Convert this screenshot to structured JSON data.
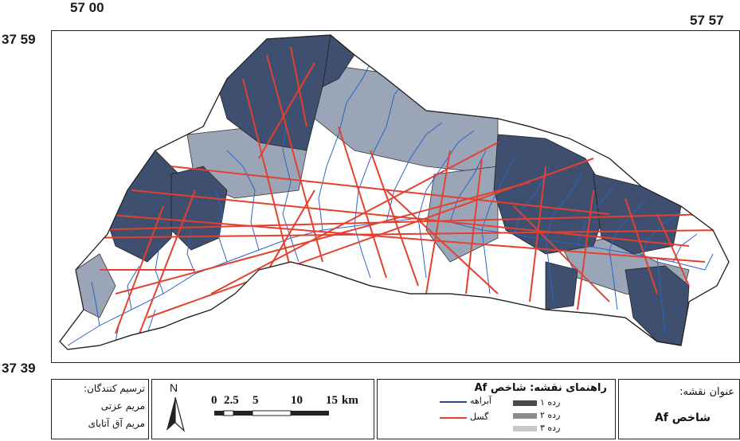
{
  "coords": {
    "top_left_lon": "57 00",
    "top_right_lon": "57 57",
    "top_lat": "37 59",
    "bottom_lat": "37 39"
  },
  "credits": {
    "title": "ترسیم کنندگان:",
    "name1": "مریم عزتی",
    "name2": "مریم آق آتابای"
  },
  "north": {
    "label": "N"
  },
  "scale": {
    "ticks": [
      "0",
      "2.5",
      "5",
      "10",
      "15"
    ],
    "unit": "km"
  },
  "legend": {
    "title": "راهنمای نقشه: شاخص Af",
    "items": [
      {
        "label": "آبراهه",
        "color": "#2f4a8c"
      },
      {
        "label": "گسل",
        "color": "#e4402f"
      }
    ],
    "classes": [
      {
        "label": "رده ۱",
        "color": "#4a4a4a"
      },
      {
        "label": "رده ۲",
        "color": "#8c8c8c"
      },
      {
        "label": "رده ۳",
        "color": "#c8c8c8"
      }
    ]
  },
  "map_title": {
    "label": "عنوان نقشه:",
    "value": "شاخص Af"
  },
  "colors": {
    "class1_fill": "#3f4f6f",
    "class2_fill": "#9aa6b8",
    "class3_fill": "#ffffff",
    "stream": "#2a64c8",
    "fault": "#e4402f"
  }
}
